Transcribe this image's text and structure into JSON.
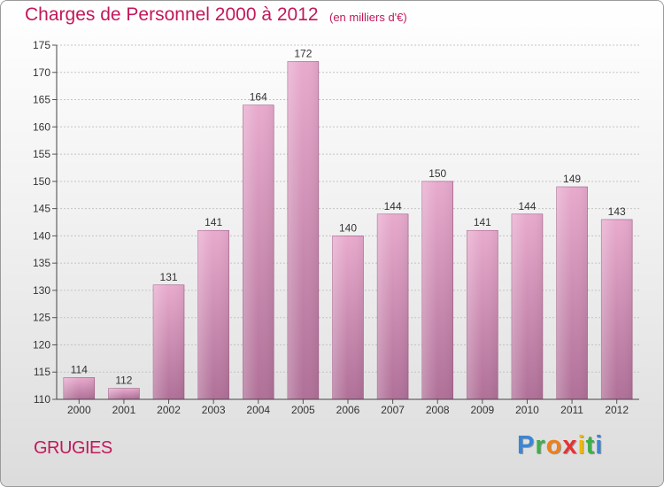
{
  "header": {
    "title": "Charges de Personnel 2000 à 2012",
    "subtitle": "(en milliers d'€)"
  },
  "footer": {
    "town": "GRUGIES",
    "logo": [
      "P",
      "r",
      "o",
      "x",
      "i",
      "t",
      "i"
    ]
  },
  "colors": {
    "accent": "#c2185b",
    "bar_top": "#e8aacd",
    "bar_bottom": "#b07098"
  },
  "chart_data": {
    "type": "bar",
    "title": "Charges de Personnel 2000 à 2012",
    "subtitle": "(en milliers d'€)",
    "xlabel": "",
    "ylabel": "",
    "categories": [
      "2000",
      "2001",
      "2002",
      "2003",
      "2004",
      "2005",
      "2006",
      "2007",
      "2008",
      "2009",
      "2010",
      "2011",
      "2012"
    ],
    "values": [
      114,
      112,
      131,
      141,
      164,
      172,
      140,
      144,
      150,
      141,
      144,
      149,
      143
    ],
    "ylim": [
      110,
      175
    ],
    "yticks": [
      110,
      115,
      120,
      125,
      130,
      135,
      140,
      145,
      150,
      155,
      160,
      165,
      170,
      175
    ],
    "grid": true,
    "legend": "none"
  }
}
